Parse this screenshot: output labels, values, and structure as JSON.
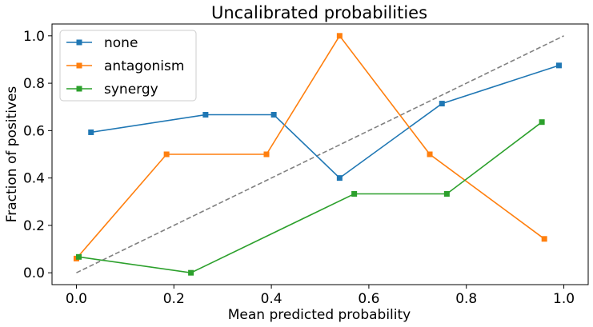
{
  "chart_data": {
    "type": "line",
    "title": "Uncalibrated probabilities",
    "xlabel": "Mean predicted probability",
    "ylabel": "Fraction of positives",
    "xlim": [
      -0.05,
      1.05
    ],
    "ylim": [
      -0.05,
      1.05
    ],
    "xticks": [
      0.0,
      0.2,
      0.4,
      0.6,
      0.8,
      1.0
    ],
    "xtick_labels": [
      "0.0",
      "0.2",
      "0.4",
      "0.6",
      "0.8",
      "1.0"
    ],
    "yticks": [
      0.0,
      0.2,
      0.4,
      0.6,
      0.8,
      1.0
    ],
    "ytick_labels": [
      "0.0",
      "0.2",
      "0.4",
      "0.6",
      "0.8",
      "1.0"
    ],
    "grid": false,
    "legend_position": "top-left",
    "reference_line": {
      "x": [
        0,
        1
      ],
      "y": [
        0,
        1
      ],
      "style": "dashed",
      "color": "#808080"
    },
    "series": [
      {
        "name": "none",
        "color": "#1f77b4",
        "marker": "square",
        "x": [
          0.03,
          0.265,
          0.405,
          0.54,
          0.75,
          0.99
        ],
        "y": [
          0.593,
          0.667,
          0.667,
          0.4,
          0.714,
          0.875
        ]
      },
      {
        "name": "antagonism",
        "color": "#ff7f0e",
        "marker": "square",
        "x": [
          0.0,
          0.185,
          0.39,
          0.54,
          0.725,
          0.96
        ],
        "y": [
          0.06,
          0.5,
          0.5,
          1.0,
          0.5,
          0.143
        ]
      },
      {
        "name": "synergy",
        "color": "#2ca02c",
        "marker": "square",
        "x": [
          0.005,
          0.235,
          0.57,
          0.76,
          0.955
        ],
        "y": [
          0.067,
          0.0,
          0.333,
          0.333,
          0.636
        ]
      }
    ]
  }
}
